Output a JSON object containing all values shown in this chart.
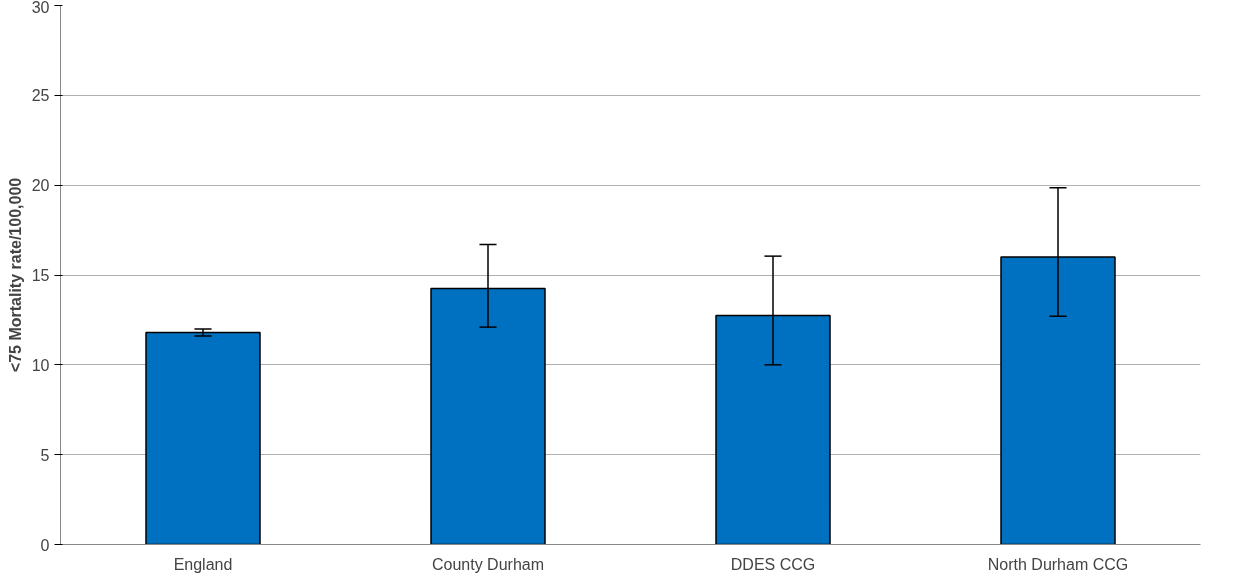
{
  "chart_data": {
    "type": "bar",
    "ylabel": "<75 Mortality rate/100,000",
    "categories": [
      "England",
      "County Durham",
      "DDES CCG",
      "North Durham CCG"
    ],
    "values": [
      11.8,
      14.25,
      12.75,
      16.0
    ],
    "errors": [
      [
        11.6,
        12.0
      ],
      [
        12.1,
        16.7
      ],
      [
        10.0,
        16.05
      ],
      [
        12.7,
        19.85
      ]
    ],
    "color": "#0070c0",
    "ylim": [
      0,
      30
    ],
    "yticks": [
      0,
      5,
      10,
      15,
      20,
      25,
      30
    ],
    "grid": "y"
  }
}
